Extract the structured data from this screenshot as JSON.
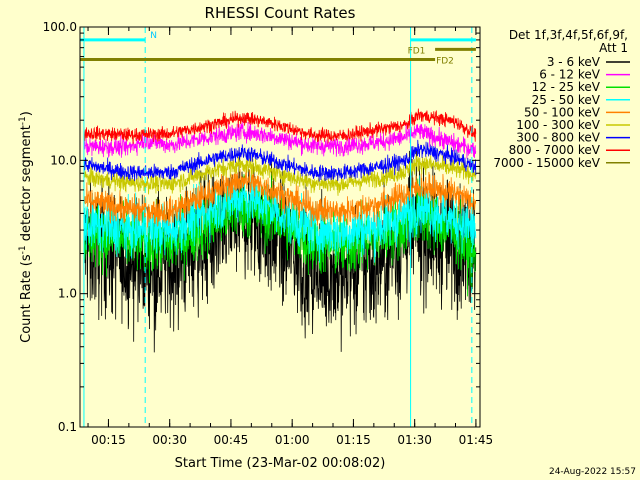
{
  "chart_data": {
    "type": "line",
    "title": "RHESSI Count Rates",
    "xlabel": "Start Time (23-Mar-02 00:08:02)",
    "ylabel_main": "Count Rate (s",
    "ylabel_sup1": "-1",
    "ylabel_mid": " detector segment",
    "ylabel_sup2": "-1",
    "ylabel_end": ")",
    "y_scale": "log",
    "ylim": [
      0.1,
      100
    ],
    "xlim": [
      "00:08:02",
      "01:46:00"
    ],
    "x_ticks": [
      "00:15",
      "00:30",
      "00:45",
      "01:00",
      "01:15",
      "01:30",
      "01:45"
    ],
    "y_ticks": [
      "0.1",
      "1.0",
      "10.0",
      "100.0"
    ],
    "legend_header_1": "Det 1f,3f,4f,5f,6f,9f,",
    "legend_header_2": "Att 1",
    "series": [
      {
        "name": "3 - 6 keV",
        "color": "#000000"
      },
      {
        "name": "6 - 12 keV",
        "color": "#ff00ff"
      },
      {
        "name": "12 - 25 keV",
        "color": "#00e000"
      },
      {
        "name": "25 - 50 keV",
        "color": "#00ffff"
      },
      {
        "name": "50 - 100 keV",
        "color": "#ff8000"
      },
      {
        "name": "100 - 300 keV",
        "color": "#c8c800"
      },
      {
        "name": "300 - 800 keV",
        "color": "#0000ff"
      },
      {
        "name": "800 - 7000 keV",
        "color": "#ff0000"
      },
      {
        "name": "7000 - 15000 keV",
        "color": "#808000"
      }
    ],
    "shown_curves": [
      {
        "label": "3 - 6 keV",
        "color": "#000000",
        "noise": 0.55,
        "points": [
          [
            "00:09",
            2.3
          ],
          [
            "00:20",
            1.8
          ],
          [
            "00:30",
            1.7
          ],
          [
            "00:40",
            2.6
          ],
          [
            "00:48",
            3.8
          ],
          [
            "00:55",
            2.8
          ],
          [
            "01:05",
            1.5
          ],
          [
            "01:12",
            1.4
          ],
          [
            "01:20",
            1.6
          ],
          [
            "01:28",
            2.6
          ],
          [
            "01:31",
            3.0
          ],
          [
            "01:40",
            2.3
          ],
          [
            "01:45",
            2.2
          ]
        ]
      },
      {
        "label": "12 - 25 keV",
        "color": "#00e000",
        "noise": 0.28,
        "points": [
          [
            "00:09",
            2.8
          ],
          [
            "00:20",
            2.5
          ],
          [
            "00:30",
            2.3
          ],
          [
            "00:40",
            3.4
          ],
          [
            "00:48",
            4.6
          ],
          [
            "00:55",
            3.8
          ],
          [
            "01:05",
            2.4
          ],
          [
            "01:12",
            2.3
          ],
          [
            "01:20",
            2.6
          ],
          [
            "01:28",
            3.3
          ],
          [
            "01:31",
            4.0
          ],
          [
            "01:40",
            2.9
          ],
          [
            "01:45",
            1.8
          ]
        ]
      },
      {
        "label": "25 - 50 keV",
        "color": "#00ffff",
        "noise": 0.22,
        "points": [
          [
            "00:09",
            3.3
          ],
          [
            "00:20",
            3.0
          ],
          [
            "00:30",
            3.0
          ],
          [
            "00:40",
            4.3
          ],
          [
            "00:48",
            5.4
          ],
          [
            "00:55",
            4.4
          ],
          [
            "01:05",
            3.0
          ],
          [
            "01:12",
            2.9
          ],
          [
            "01:20",
            3.1
          ],
          [
            "01:28",
            3.9
          ],
          [
            "01:31",
            4.6
          ],
          [
            "01:40",
            3.5
          ],
          [
            "01:45",
            3.0
          ]
        ]
      },
      {
        "label": "50 - 100 keV",
        "color": "#ff8000",
        "noise": 0.12,
        "points": [
          [
            "00:09",
            5.0
          ],
          [
            "00:20",
            4.3
          ],
          [
            "00:30",
            4.1
          ],
          [
            "00:40",
            5.7
          ],
          [
            "00:48",
            7.2
          ],
          [
            "00:55",
            6.0
          ],
          [
            "01:05",
            4.3
          ],
          [
            "01:12",
            4.1
          ],
          [
            "01:20",
            4.6
          ],
          [
            "01:28",
            5.6
          ],
          [
            "01:31",
            6.4
          ],
          [
            "01:40",
            5.6
          ],
          [
            "01:45",
            4.8
          ]
        ]
      },
      {
        "label": "100 - 300 keV",
        "color": "#c8c800",
        "noise": 0.08,
        "points": [
          [
            "00:09",
            7.5
          ],
          [
            "00:20",
            6.8
          ],
          [
            "00:30",
            6.6
          ],
          [
            "00:40",
            8.3
          ],
          [
            "00:48",
            9.4
          ],
          [
            "00:55",
            8.2
          ],
          [
            "01:05",
            6.8
          ],
          [
            "01:12",
            6.6
          ],
          [
            "01:20",
            7.3
          ],
          [
            "01:28",
            8.3
          ],
          [
            "01:31",
            9.6
          ],
          [
            "01:40",
            8.6
          ],
          [
            "01:45",
            7.8
          ]
        ]
      },
      {
        "label": "300 - 800 keV",
        "color": "#0000ff",
        "noise": 0.07,
        "points": [
          [
            "00:09",
            9.3
          ],
          [
            "00:20",
            8.1
          ],
          [
            "00:30",
            8.1
          ],
          [
            "00:40",
            10.2
          ],
          [
            "00:48",
            11.5
          ],
          [
            "00:55",
            10.0
          ],
          [
            "01:05",
            8.1
          ],
          [
            "01:12",
            8.0
          ],
          [
            "01:20",
            8.8
          ],
          [
            "01:28",
            10.0
          ],
          [
            "01:31",
            12.2
          ],
          [
            "01:40",
            10.5
          ],
          [
            "01:45",
            8.8
          ]
        ]
      },
      {
        "label": "6 - 12 keV",
        "color": "#ff00ff",
        "noise": 0.08,
        "points": [
          [
            "00:09",
            12.7
          ],
          [
            "00:20",
            12.5
          ],
          [
            "00:24",
            14.2
          ],
          [
            "00:30",
            13.0
          ],
          [
            "00:40",
            15.0
          ],
          [
            "00:48",
            16.5
          ],
          [
            "00:55",
            15.2
          ],
          [
            "01:05",
            12.8
          ],
          [
            "01:12",
            12.8
          ],
          [
            "01:20",
            13.5
          ],
          [
            "01:28",
            15.0
          ],
          [
            "01:31",
            16.5
          ],
          [
            "01:40",
            13.2
          ],
          [
            "01:45",
            12.0
          ]
        ]
      },
      {
        "label": "800 - 7000 keV",
        "color": "#ff0000",
        "noise": 0.06,
        "points": [
          [
            "00:09",
            16.0
          ],
          [
            "00:20",
            15.5
          ],
          [
            "00:30",
            15.8
          ],
          [
            "00:40",
            18.5
          ],
          [
            "00:48",
            21.0
          ],
          [
            "00:55",
            19.0
          ],
          [
            "01:05",
            15.5
          ],
          [
            "01:12",
            15.2
          ],
          [
            "01:20",
            16.8
          ],
          [
            "01:28",
            18.5
          ],
          [
            "01:31",
            22.0
          ],
          [
            "01:40",
            19.5
          ],
          [
            "01:45",
            15.5
          ]
        ]
      }
    ],
    "vertical_markers": [
      {
        "time": "00:09",
        "style": "solid"
      },
      {
        "time": "00:24",
        "style": "dashed"
      },
      {
        "time": "01:29",
        "style": "solid"
      },
      {
        "time": "01:44",
        "style": "dashed"
      }
    ],
    "flag_bars": [
      {
        "label": "N",
        "color": "#00ffff",
        "segments": [
          [
            "00:08",
            "00:24"
          ]
        ],
        "y": 80
      },
      {
        "label": "FD1",
        "color": "#00ffff",
        "segments": [
          [
            "01:29",
            "01:45"
          ]
        ],
        "y": 80
      },
      {
        "label": "FD1",
        "color": "#808000",
        "segments": [
          [
            "01:35",
            "01:45"
          ]
        ],
        "y": 68
      },
      {
        "label": "FD2",
        "color": "#808000",
        "segments": [
          [
            "00:08",
            "01:35"
          ]
        ],
        "y": 57
      }
    ],
    "flag_label_1": "N",
    "flag_label_2": "FD1",
    "flag_label_3": "FD2"
  },
  "footer_timestamp": "24-Aug-2022 15:57"
}
